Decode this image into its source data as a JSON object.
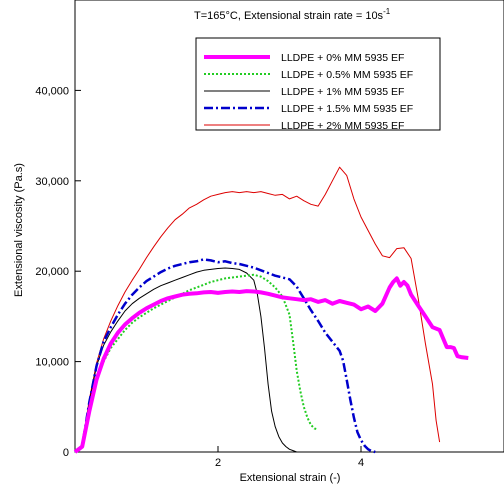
{
  "chart_data": {
    "type": "line",
    "title": "T=165°C, Extensional strain rate = 10s",
    "title_superscript": "-1",
    "xlabel": "Extensional strain (-)",
    "ylabel": "Extensional viscosity (Pa.s)",
    "xlim": [
      0,
      6
    ],
    "ylim": [
      0,
      50000
    ],
    "x_ticks": [
      2,
      4
    ],
    "x_tick_labels": [
      "2",
      "4"
    ],
    "y_ticks": [
      0,
      10000,
      20000,
      30000,
      40000
    ],
    "y_tick_labels": [
      "0",
      "10,000",
      "20,000",
      "30,000",
      "40,000"
    ],
    "grid": false,
    "legend_position": "top-right",
    "series": [
      {
        "name": "LLDPE + 0% MM 5935 EF",
        "color": "#ff00ff",
        "style": "solid-thick",
        "x": [
          0.0,
          0.1,
          0.2,
          0.3,
          0.4,
          0.5,
          0.6,
          0.7,
          0.8,
          0.9,
          1.0,
          1.1,
          1.2,
          1.3,
          1.4,
          1.5,
          1.6,
          1.7,
          1.8,
          1.9,
          2.0,
          2.1,
          2.2,
          2.3,
          2.4,
          2.5,
          2.6,
          2.7,
          2.8,
          2.9,
          3.0,
          3.1,
          3.2,
          3.3,
          3.4,
          3.5,
          3.6,
          3.7,
          3.8,
          3.9,
          4.0,
          4.1,
          4.2,
          4.3,
          4.4,
          4.45,
          4.5,
          4.55,
          4.6,
          4.65,
          4.7,
          4.8,
          4.9,
          5.0,
          5.1,
          5.2,
          5.25,
          5.3,
          5.35,
          5.4,
          5.5
        ],
        "y": [
          0,
          600,
          4500,
          8000,
          10300,
          12000,
          13200,
          14100,
          14800,
          15400,
          15900,
          16300,
          16700,
          17000,
          17200,
          17400,
          17500,
          17550,
          17650,
          17700,
          17600,
          17700,
          17750,
          17700,
          17800,
          17750,
          17650,
          17500,
          17300,
          17100,
          17000,
          16900,
          16800,
          16900,
          16600,
          16800,
          16400,
          16700,
          16500,
          16300,
          15800,
          16100,
          15600,
          16400,
          18200,
          18800,
          19200,
          18400,
          18800,
          18400,
          17400,
          16200,
          15000,
          13800,
          13500,
          11600,
          11600,
          11500,
          10600,
          10500,
          10400
        ]
      },
      {
        "name": "LLDPE + 0.5% MM 5935 EF",
        "color": "#22cc22",
        "style": "dotted",
        "x": [
          0.0,
          0.1,
          0.2,
          0.3,
          0.4,
          0.5,
          0.6,
          0.7,
          0.8,
          0.9,
          1.0,
          1.1,
          1.2,
          1.3,
          1.4,
          1.5,
          1.6,
          1.7,
          1.8,
          1.9,
          2.0,
          2.1,
          2.2,
          2.3,
          2.4,
          2.5,
          2.6,
          2.7,
          2.8,
          2.9,
          3.0,
          3.05,
          3.1,
          3.15,
          3.2,
          3.25,
          3.3,
          3.35,
          3.4
        ],
        "y": [
          0,
          600,
          4500,
          8000,
          10000,
          11500,
          12500,
          13500,
          14300,
          14900,
          15400,
          15900,
          16300,
          16700,
          17100,
          17500,
          17900,
          18200,
          18500,
          18800,
          19000,
          19200,
          19300,
          19400,
          19500,
          19600,
          19400,
          18900,
          18200,
          17200,
          15200,
          12200,
          9000,
          6800,
          5000,
          3800,
          3000,
          2600,
          2500
        ]
      },
      {
        "name": "LLDPE + 1% MM 5935 EF",
        "color": "#000000",
        "style": "solid-thin",
        "x": [
          0.0,
          0.1,
          0.2,
          0.3,
          0.4,
          0.5,
          0.6,
          0.7,
          0.8,
          0.9,
          1.0,
          1.1,
          1.2,
          1.3,
          1.4,
          1.5,
          1.6,
          1.7,
          1.8,
          1.9,
          2.0,
          2.1,
          2.2,
          2.3,
          2.4,
          2.5,
          2.55,
          2.6,
          2.65,
          2.7,
          2.75,
          2.8,
          2.85,
          2.9,
          2.95,
          3.0,
          3.05,
          3.1,
          3.2,
          3.3
        ],
        "y": [
          0,
          700,
          5500,
          9500,
          11800,
          13300,
          14500,
          15600,
          16400,
          17000,
          17500,
          18000,
          18400,
          18700,
          19000,
          19300,
          19600,
          19900,
          20100,
          20200,
          20300,
          20350,
          20300,
          20200,
          19800,
          19000,
          17500,
          15000,
          11500,
          7500,
          4500,
          2800,
          1700,
          1000,
          600,
          300,
          150,
          0,
          0,
          0
        ]
      },
      {
        "name": "LLDPE + 1.5% MM 5935 EF",
        "color": "#0000cc",
        "style": "dash-dot",
        "x": [
          0.0,
          0.1,
          0.2,
          0.3,
          0.4,
          0.5,
          0.6,
          0.7,
          0.8,
          0.9,
          1.0,
          1.1,
          1.2,
          1.3,
          1.4,
          1.5,
          1.6,
          1.7,
          1.8,
          1.9,
          2.0,
          2.1,
          2.2,
          2.3,
          2.4,
          2.5,
          2.6,
          2.7,
          2.8,
          2.9,
          3.0,
          3.1,
          3.2,
          3.3,
          3.4,
          3.5,
          3.6,
          3.7,
          3.75,
          3.8,
          3.85,
          3.9,
          3.95,
          4.0,
          4.05,
          4.1,
          4.15,
          4.2
        ],
        "y": [
          0,
          700,
          5500,
          9500,
          12200,
          13800,
          15200,
          16400,
          17400,
          18200,
          18900,
          19400,
          19900,
          20300,
          20600,
          20800,
          21000,
          21100,
          21300,
          21200,
          21000,
          21100,
          20900,
          20800,
          20600,
          20400,
          20100,
          19800,
          19500,
          19300,
          19100,
          18300,
          17000,
          15700,
          14500,
          13200,
          12200,
          11200,
          10100,
          8000,
          5800,
          3800,
          2200,
          1300,
          700,
          300,
          100,
          0
        ]
      },
      {
        "name": "LLDPE + 2% MM 5935 EF",
        "color": "#dd0000",
        "style": "solid-thin",
        "x": [
          0.0,
          0.1,
          0.2,
          0.3,
          0.4,
          0.5,
          0.6,
          0.7,
          0.8,
          0.9,
          1.0,
          1.1,
          1.2,
          1.3,
          1.4,
          1.5,
          1.6,
          1.7,
          1.8,
          1.9,
          2.0,
          2.1,
          2.2,
          2.3,
          2.4,
          2.5,
          2.6,
          2.7,
          2.8,
          2.9,
          3.0,
          3.1,
          3.2,
          3.3,
          3.4,
          3.5,
          3.6,
          3.7,
          3.8,
          3.9,
          4.0,
          4.1,
          4.2,
          4.3,
          4.4,
          4.5,
          4.6,
          4.7,
          4.8,
          4.9,
          5.0,
          5.05,
          5.1
        ],
        "y": [
          0,
          800,
          5800,
          9800,
          12500,
          14500,
          16200,
          17700,
          19000,
          20200,
          21500,
          22700,
          23800,
          24800,
          25700,
          26300,
          27000,
          27400,
          27900,
          28300,
          28500,
          28700,
          28800,
          28700,
          28800,
          28700,
          28800,
          28600,
          28400,
          28500,
          28000,
          28300,
          27800,
          27400,
          27200,
          28500,
          30000,
          31500,
          30600,
          28000,
          26000,
          24500,
          23000,
          21700,
          21500,
          22500,
          22600,
          21400,
          17000,
          12000,
          7500,
          3500,
          1100
        ]
      }
    ]
  }
}
